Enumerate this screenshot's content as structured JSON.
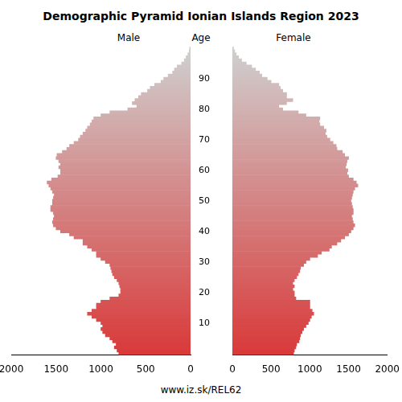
{
  "chart_data": {
    "type": "pyramid",
    "title": "Demographic Pyramid Ionian Islands Region 2023",
    "y_label": "Age",
    "source": "www.iz.sk/REL62",
    "orientation": "horizontal",
    "grid": false,
    "categories": [
      0,
      1,
      2,
      3,
      4,
      5,
      6,
      7,
      8,
      9,
      10,
      11,
      12,
      13,
      14,
      15,
      16,
      17,
      18,
      19,
      20,
      21,
      22,
      23,
      24,
      25,
      26,
      27,
      28,
      29,
      30,
      31,
      32,
      33,
      34,
      35,
      36,
      37,
      38,
      39,
      40,
      41,
      42,
      43,
      44,
      45,
      46,
      47,
      48,
      49,
      50,
      51,
      52,
      53,
      54,
      55,
      56,
      57,
      58,
      59,
      60,
      61,
      62,
      63,
      64,
      65,
      66,
      67,
      68,
      69,
      70,
      71,
      72,
      73,
      74,
      75,
      76,
      77,
      78,
      79,
      80,
      81,
      82,
      83,
      84,
      85,
      86,
      87,
      88,
      89,
      90,
      91,
      92,
      93,
      94,
      95,
      96,
      97,
      98,
      99,
      100
    ],
    "yticks": [
      10,
      20,
      30,
      40,
      50,
      60,
      70,
      80,
      90
    ],
    "xlim": [
      0,
      2000
    ],
    "xticks": [
      0,
      500,
      1000,
      1500,
      2000
    ],
    "series": [
      {
        "name": "Male",
        "color": "#d93a3a",
        "values": [
          800,
          820,
          850,
          830,
          870,
          900,
          950,
          980,
          1000,
          980,
          1000,
          1050,
          1100,
          1150,
          1100,
          1050,
          1050,
          1000,
          900,
          800,
          780,
          780,
          790,
          800,
          820,
          850,
          870,
          880,
          890,
          900,
          950,
          1000,
          1050,
          1050,
          1100,
          1150,
          1200,
          1200,
          1300,
          1350,
          1450,
          1500,
          1530,
          1540,
          1530,
          1520,
          1530,
          1560,
          1560,
          1540,
          1540,
          1530,
          1520,
          1540,
          1560,
          1580,
          1600,
          1550,
          1480,
          1450,
          1450,
          1470,
          1450,
          1470,
          1500,
          1490,
          1430,
          1380,
          1350,
          1300,
          1250,
          1230,
          1200,
          1170,
          1150,
          1120,
          1100,
          1080,
          1000,
          900,
          700,
          600,
          650,
          620,
          580,
          550,
          480,
          450,
          400,
          330,
          300,
          250,
          200,
          180,
          150,
          100,
          70,
          50,
          30,
          15,
          10
        ]
      },
      {
        "name": "Female",
        "color": "#d93a3a",
        "values": [
          790,
          800,
          820,
          830,
          860,
          870,
          880,
          900,
          920,
          950,
          980,
          1000,
          1020,
          1050,
          1030,
          1000,
          1000,
          1000,
          820,
          800,
          800,
          780,
          800,
          780,
          800,
          830,
          850,
          870,
          880,
          920,
          950,
          1000,
          1100,
          1150,
          1250,
          1280,
          1350,
          1400,
          1450,
          1500,
          1530,
          1560,
          1580,
          1560,
          1550,
          1540,
          1560,
          1560,
          1550,
          1540,
          1530,
          1540,
          1550,
          1560,
          1580,
          1620,
          1600,
          1560,
          1500,
          1480,
          1490,
          1460,
          1470,
          1480,
          1500,
          1450,
          1420,
          1350,
          1340,
          1300,
          1260,
          1220,
          1200,
          1210,
          1180,
          1130,
          1120,
          1130,
          950,
          850,
          650,
          600,
          700,
          780,
          700,
          700,
          650,
          620,
          600,
          500,
          450,
          380,
          350,
          300,
          250,
          180,
          120,
          80,
          50,
          30,
          15
        ]
      }
    ]
  }
}
